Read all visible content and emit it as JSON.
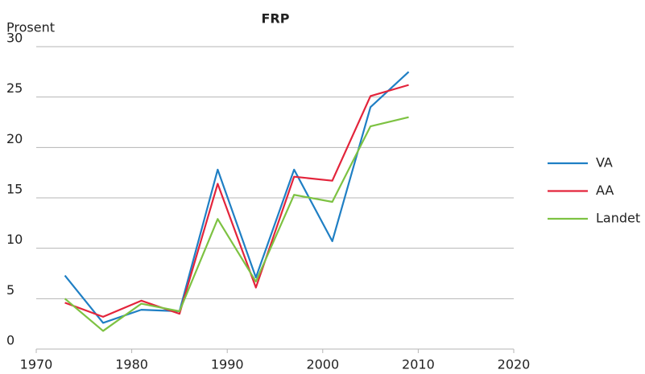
{
  "chart_data": {
    "type": "line",
    "title": "FRP",
    "y_label": "Prosent",
    "x": [
      1973,
      1977,
      1981,
      1985,
      1989,
      1993,
      1997,
      2001,
      2005,
      2009
    ],
    "series": [
      {
        "name": "VA",
        "color": "#1f7fc4",
        "values": [
          7.3,
          2.6,
          3.9,
          3.75,
          17.8,
          7.1,
          17.8,
          10.7,
          24,
          27.5
        ]
      },
      {
        "name": "AA",
        "color": "#e3243b",
        "values": [
          4.6,
          3.2,
          4.8,
          3.5,
          16.4,
          6.1,
          17.1,
          16.7,
          25.1,
          26.2
        ]
      },
      {
        "name": "Landet",
        "color": "#7dc242",
        "values": [
          5.0,
          1.8,
          4.5,
          3.75,
          12.9,
          6.7,
          15.3,
          14.6,
          22.1,
          23.0
        ]
      }
    ],
    "xlim": [
      1970,
      2020
    ],
    "xticks": [
      1970,
      1980,
      1990,
      2000,
      2010,
      2020
    ],
    "ylim": [
      0,
      30
    ],
    "yticks": [
      0,
      5,
      10,
      15,
      20,
      25,
      30
    ],
    "grid": true,
    "legend": "right"
  }
}
